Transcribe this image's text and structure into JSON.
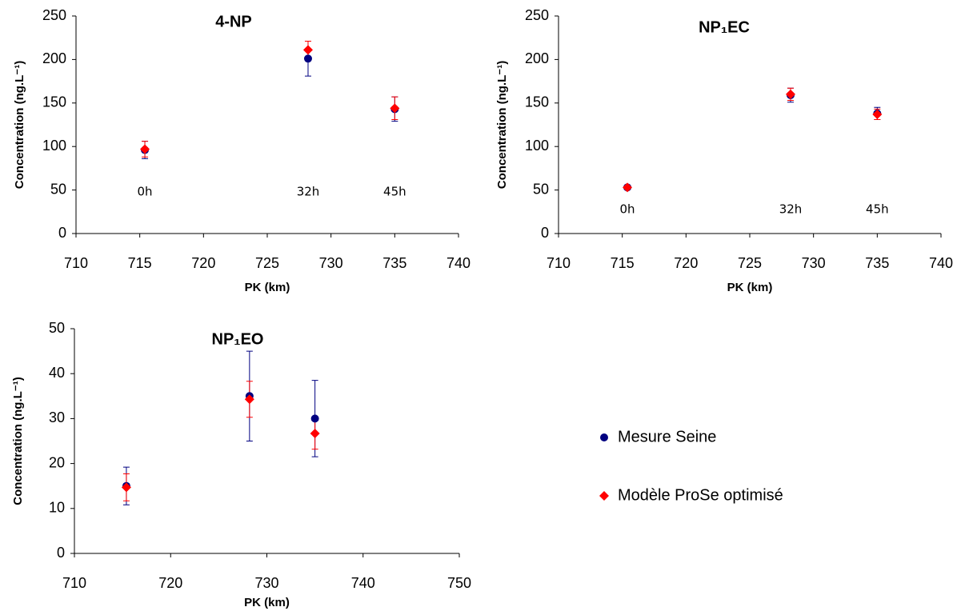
{
  "chart_data": [
    {
      "type": "scatter",
      "title": "4-NP",
      "x_label": "PK (km)",
      "y_label": "Concentration (ng.L⁻¹)",
      "x": [
        715.4,
        728.2,
        735.0
      ],
      "annotations": [
        "0h",
        "32h",
        "45h"
      ],
      "series": [
        {
          "color": "#000080",
          "marker": "circle",
          "values": [
            96,
            201,
            143
          ],
          "errors": [
            10,
            20,
            14
          ]
        },
        {
          "color": "#ff0000",
          "marker": "diamond",
          "values": [
            97,
            211,
            144
          ],
          "errors": [
            9,
            10,
            13
          ]
        }
      ],
      "xlim": [
        710,
        740
      ],
      "xticks": [
        710,
        715,
        720,
        725,
        730,
        735,
        740
      ],
      "ylim": [
        0,
        250
      ],
      "yticks": [
        0,
        50,
        100,
        150,
        200,
        250
      ]
    },
    {
      "type": "scatter",
      "title": "NP₁EC",
      "x_label": "PK (km)",
      "y_label": "Concentration (ng.L⁻¹)",
      "x": [
        715.4,
        728.2,
        735.0
      ],
      "annotations": [
        "0h",
        "32h",
        "45h"
      ],
      "series": [
        {
          "color": "#000080",
          "marker": "circle",
          "values": [
            53,
            159,
            138
          ],
          "errors": [
            2,
            8,
            7
          ]
        },
        {
          "color": "#ff0000",
          "marker": "diamond",
          "values": [
            53,
            160,
            137
          ],
          "errors": [
            2,
            7,
            6
          ]
        }
      ],
      "xlim": [
        710,
        740
      ],
      "xticks": [
        710,
        715,
        720,
        725,
        730,
        735,
        740
      ],
      "ylim": [
        0,
        250
      ],
      "yticks": [
        0,
        50,
        100,
        150,
        200,
        250
      ]
    },
    {
      "type": "scatter",
      "title": "NP₁EO",
      "x_label": "PK (km)",
      "y_label": "Concentration (ng.L⁻¹)",
      "x": [
        715.4,
        728.2,
        735.0
      ],
      "series": [
        {
          "name": "Mesure Seine",
          "color": "#000080",
          "marker": "circle",
          "values": [
            15,
            35,
            30
          ],
          "errors": [
            4.2,
            10,
            8.5
          ]
        },
        {
          "name": "Modèle ProSe optimisé",
          "color": "#ff0000",
          "marker": "diamond",
          "values": [
            14.7,
            34.3,
            26.7
          ],
          "errors": [
            3,
            4,
            3.5
          ]
        }
      ],
      "legend": "right",
      "xlim": [
        710,
        750
      ],
      "xticks": [
        710,
        720,
        730,
        740,
        750
      ],
      "ylim": [
        0,
        50
      ],
      "yticks": [
        0,
        10,
        20,
        30,
        40,
        50
      ]
    }
  ]
}
